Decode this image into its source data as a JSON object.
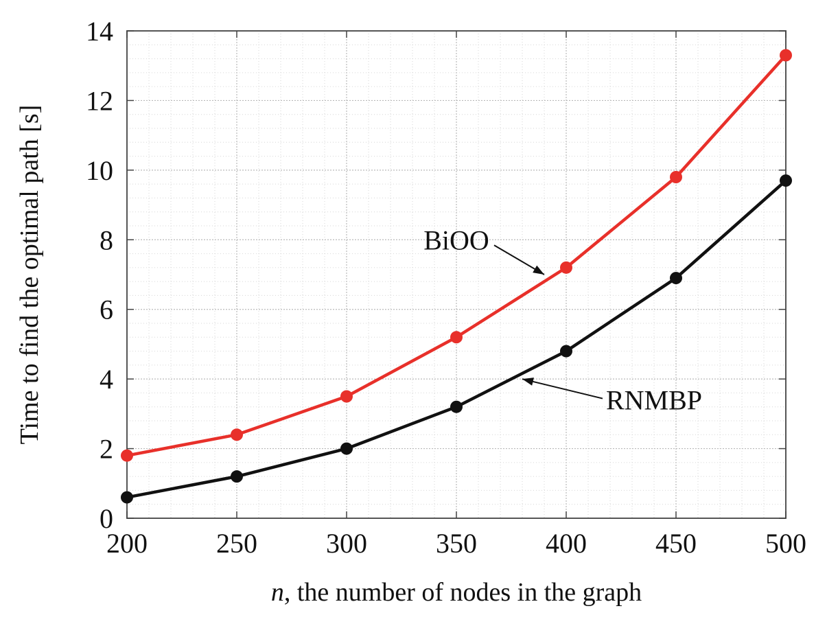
{
  "chart_data": {
    "type": "line",
    "title": "",
    "xlabel_italic": "n",
    "xlabel_rest": ", the number of nodes in the graph",
    "ylabel": "Time to find the optimal path [s]",
    "x": [
      200,
      250,
      300,
      350,
      400,
      450,
      500
    ],
    "xticks": [
      "200",
      "250",
      "300",
      "350",
      "400",
      "450",
      "500"
    ],
    "yticks": [
      "0",
      "2",
      "4",
      "6",
      "8",
      "10",
      "12",
      "14"
    ],
    "xlim": [
      200,
      500
    ],
    "ylim": [
      0,
      14
    ],
    "grid": true,
    "series": [
      {
        "name": "BiOO",
        "color": "#e8302a",
        "values": [
          1.8,
          2.4,
          3.5,
          5.2,
          7.2,
          9.8,
          13.3
        ]
      },
      {
        "name": "RNMBP",
        "color": "#111111",
        "values": [
          0.6,
          1.2,
          2.0,
          3.2,
          4.8,
          6.9,
          9.7
        ]
      }
    ],
    "annotations": [
      {
        "text": "BiOO",
        "series": "BiOO",
        "arrow_to": [
          390,
          7.0
        ],
        "text_at": [
          350,
          8.0
        ]
      },
      {
        "text": "RNMBP",
        "series": "RNMBP",
        "arrow_to": [
          380,
          4.0
        ],
        "text_at": [
          440,
          3.4
        ]
      }
    ]
  }
}
